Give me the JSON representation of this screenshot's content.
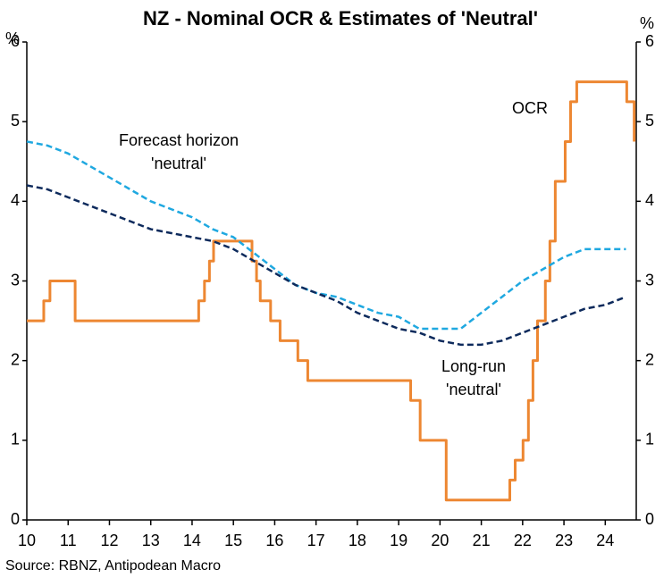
{
  "chart_data": {
    "type": "line",
    "title": "NZ - Nominal OCR & Estimates of 'Neutral'",
    "y_label": "%",
    "y2_label": "%",
    "source": "Source: RBNZ, Antipodean Macro",
    "xlim": [
      10,
      24.75
    ],
    "xticks": [
      10,
      11,
      12,
      13,
      14,
      15,
      16,
      17,
      18,
      19,
      20,
      21,
      22,
      23,
      24
    ],
    "ylim": [
      0,
      6
    ],
    "yticks": [
      0,
      1,
      2,
      3,
      4,
      5,
      6
    ],
    "y2lim": [
      0,
      6
    ],
    "y2ticks": [
      0,
      1,
      2,
      3,
      4,
      5,
      6
    ],
    "series": [
      {
        "name": "OCR",
        "color": "#ed8732",
        "dashed": false,
        "x": [
          10,
          10.41,
          10.41,
          10.56,
          10.56,
          11.17,
          11.17,
          14.16,
          14.16,
          14.3,
          14.3,
          14.42,
          14.42,
          14.52,
          14.52,
          15.45,
          15.45,
          15.56,
          15.56,
          15.65,
          15.65,
          15.9,
          15.9,
          16.13,
          16.13,
          16.56,
          16.56,
          16.8,
          16.8,
          19.29,
          19.29,
          19.52,
          19.52,
          20.15,
          20.15,
          21.69,
          21.69,
          21.82,
          21.82,
          22.01,
          22.01,
          22.14,
          22.14,
          22.25,
          22.25,
          22.36,
          22.36,
          22.55,
          22.55,
          22.66,
          22.66,
          22.79,
          22.79,
          23.03,
          23.03,
          23.16,
          23.16,
          23.31,
          23.31,
          24.52,
          24.52,
          24.7,
          24.7
        ],
        "values": [
          2.5,
          2.5,
          2.75,
          2.75,
          3.0,
          3.0,
          2.5,
          2.5,
          2.75,
          2.75,
          3.0,
          3.0,
          3.25,
          3.25,
          3.5,
          3.5,
          3.25,
          3.25,
          3.0,
          3.0,
          2.75,
          2.75,
          2.5,
          2.5,
          2.25,
          2.25,
          2.0,
          2.0,
          1.75,
          1.75,
          1.5,
          1.5,
          1.0,
          1.0,
          0.25,
          0.25,
          0.5,
          0.5,
          0.75,
          0.75,
          1.0,
          1.0,
          1.5,
          1.5,
          2.0,
          2.0,
          2.5,
          2.5,
          3.0,
          3.0,
          3.5,
          3.5,
          4.25,
          4.25,
          4.75,
          4.75,
          5.25,
          5.25,
          5.5,
          5.5,
          5.25,
          5.25,
          4.75
        ]
      },
      {
        "name_lines": [
          "Forecast horizon",
          "'neutral'"
        ],
        "color": "#1fa8e0",
        "dashed": true,
        "x": [
          10,
          10.5,
          11,
          11.5,
          12,
          12.5,
          13,
          13.5,
          14,
          14.5,
          15,
          15.5,
          16,
          16.5,
          17,
          17.5,
          18,
          18.5,
          19,
          19.5,
          20,
          20.5,
          21,
          21.5,
          22,
          22.5,
          23,
          23.5,
          24,
          24.5
        ],
        "values": [
          4.75,
          4.7,
          4.6,
          4.45,
          4.3,
          4.15,
          4.0,
          3.9,
          3.8,
          3.65,
          3.55,
          3.35,
          3.15,
          2.95,
          2.85,
          2.8,
          2.7,
          2.6,
          2.55,
          2.4,
          2.4,
          2.4,
          2.6,
          2.8,
          3.0,
          3.15,
          3.3,
          3.4,
          3.4,
          3.4
        ]
      },
      {
        "name_lines": [
          "Long-run",
          "'neutral'"
        ],
        "color": "#0d2a5c",
        "dashed": true,
        "x": [
          10,
          10.5,
          11,
          11.5,
          12,
          12.5,
          13,
          13.5,
          14,
          14.5,
          15,
          15.5,
          16,
          16.5,
          17,
          17.5,
          18,
          18.5,
          19,
          19.5,
          20,
          20.5,
          21,
          21.5,
          22,
          22.5,
          23,
          23.5,
          24,
          24.5
        ],
        "values": [
          4.2,
          4.15,
          4.05,
          3.95,
          3.85,
          3.75,
          3.65,
          3.6,
          3.55,
          3.5,
          3.4,
          3.25,
          3.1,
          2.95,
          2.85,
          2.75,
          2.6,
          2.5,
          2.4,
          2.35,
          2.25,
          2.2,
          2.2,
          2.25,
          2.35,
          2.45,
          2.55,
          2.65,
          2.7,
          2.8
        ]
      }
    ]
  }
}
